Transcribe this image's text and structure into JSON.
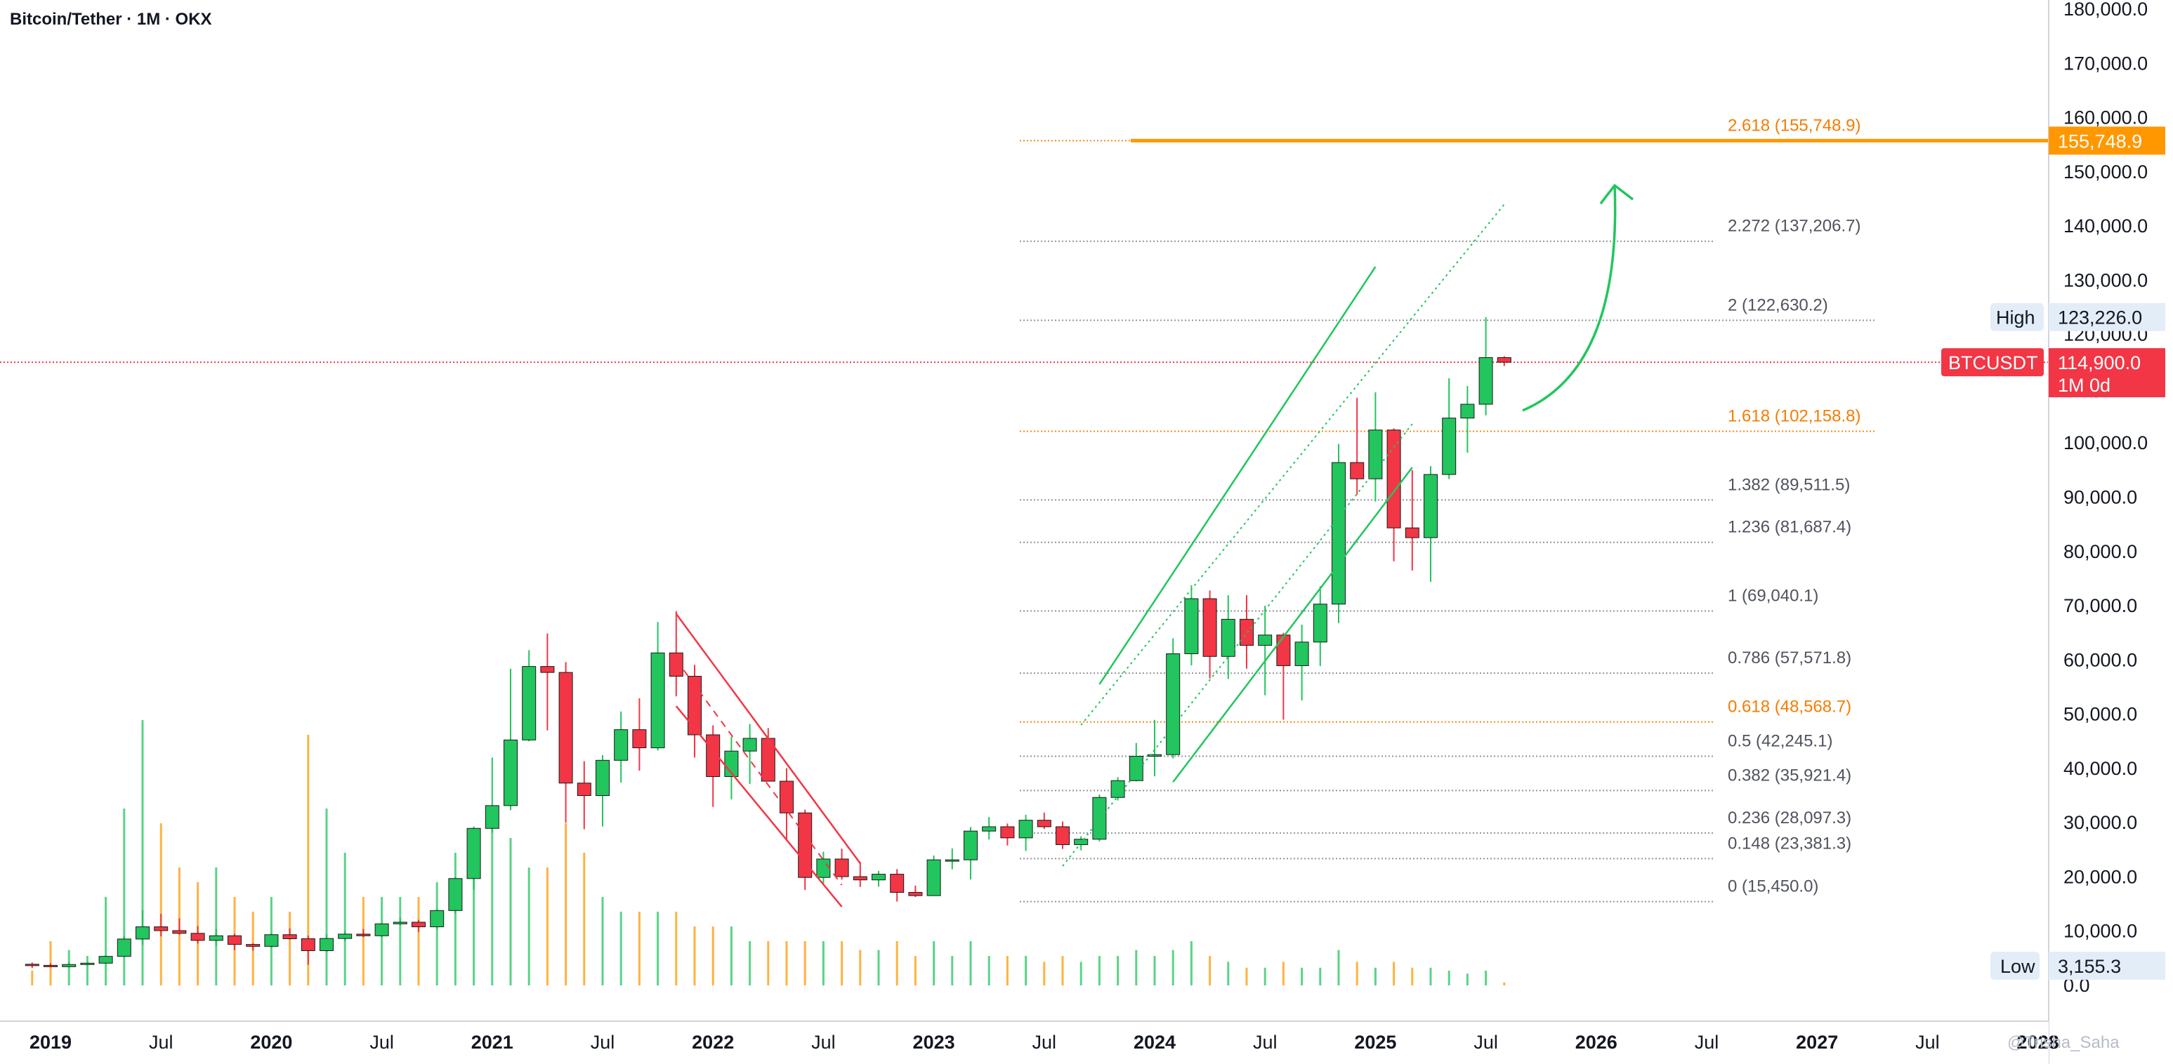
{
  "chart_data": {
    "type": "candlestick",
    "title": "Bitcoin/Tether · 1M · OKX",
    "symbol": "BTCUSDT",
    "timeframe_label": "1M 0d",
    "ylim": [
      0,
      180000
    ],
    "y_ticks": [
      "0.0",
      "10,000.0",
      "20,000.0",
      "30,000.0",
      "40,000.0",
      "50,000.0",
      "60,000.0",
      "70,000.0",
      "80,000.0",
      "90,000.0",
      "100,000.0",
      "110,000.0",
      "120,000.0",
      "130,000.0",
      "140,000.0",
      "150,000.0",
      "160,000.0",
      "170,000.0",
      "180,000.0"
    ],
    "y_tick_values": [
      0,
      10000,
      20000,
      30000,
      40000,
      50000,
      60000,
      70000,
      80000,
      90000,
      100000,
      110000,
      120000,
      130000,
      140000,
      150000,
      160000,
      170000,
      180000
    ],
    "x_labels": [
      {
        "text": "2019",
        "date": "2019-01",
        "bold": true
      },
      {
        "text": "Jul",
        "date": "2019-07",
        "bold": false
      },
      {
        "text": "2020",
        "date": "2020-01",
        "bold": true
      },
      {
        "text": "Jul",
        "date": "2020-07",
        "bold": false
      },
      {
        "text": "2021",
        "date": "2021-01",
        "bold": true
      },
      {
        "text": "Jul",
        "date": "2021-07",
        "bold": false
      },
      {
        "text": "2022",
        "date": "2022-01",
        "bold": true
      },
      {
        "text": "Jul",
        "date": "2022-07",
        "bold": false
      },
      {
        "text": "2023",
        "date": "2023-01",
        "bold": true
      },
      {
        "text": "Jul",
        "date": "2023-07",
        "bold": false
      },
      {
        "text": "2024",
        "date": "2024-01",
        "bold": true
      },
      {
        "text": "Jul",
        "date": "2024-07",
        "bold": false
      },
      {
        "text": "2025",
        "date": "2025-01",
        "bold": true
      },
      {
        "text": "Jul",
        "date": "2025-07",
        "bold": false
      },
      {
        "text": "2026",
        "date": "2026-01",
        "bold": true
      },
      {
        "text": "Jul",
        "date": "2026-07",
        "bold": false
      },
      {
        "text": "2027",
        "date": "2027-01",
        "bold": true
      },
      {
        "text": "Jul",
        "date": "2027-07",
        "bold": false
      },
      {
        "text": "2028",
        "date": "2028-01",
        "bold": true
      }
    ],
    "candles": [
      [
        "2018-12",
        3900,
        4200,
        3200,
        3700,
        0.05
      ],
      [
        "2019-01",
        3700,
        4100,
        3400,
        3450,
        0.15
      ],
      [
        "2019-02",
        3450,
        4250,
        3350,
        3850,
        0.12
      ],
      [
        "2019-03",
        3850,
        4100,
        3700,
        4100,
        0.1
      ],
      [
        "2019-04",
        4100,
        5600,
        4050,
        5350,
        0.3
      ],
      [
        "2019-05",
        5350,
        9100,
        5300,
        8550,
        0.6
      ],
      [
        "2019-06",
        8550,
        13900,
        7450,
        10800,
        0.9
      ],
      [
        "2019-07",
        10800,
        13200,
        9050,
        10100,
        0.55
      ],
      [
        "2019-08",
        10100,
        12350,
        9350,
        9600,
        0.4
      ],
      [
        "2019-09",
        9600,
        10950,
        7700,
        8300,
        0.35
      ],
      [
        "2019-10",
        8300,
        10400,
        7300,
        9150,
        0.4
      ],
      [
        "2019-11",
        9150,
        9500,
        6500,
        7550,
        0.3
      ],
      [
        "2019-12",
        7550,
        7750,
        6400,
        7200,
        0.25
      ],
      [
        "2020-01",
        7200,
        9600,
        6900,
        9350,
        0.3
      ],
      [
        "2020-02",
        9350,
        10500,
        8450,
        8600,
        0.25
      ],
      [
        "2020-03",
        8600,
        9200,
        3800,
        6400,
        0.85
      ],
      [
        "2020-04",
        6400,
        9500,
        6150,
        8650,
        0.6
      ],
      [
        "2020-05",
        8650,
        10050,
        8100,
        9450,
        0.45
      ],
      [
        "2020-06",
        9450,
        10400,
        8900,
        9150,
        0.3
      ],
      [
        "2020-07",
        9150,
        11450,
        8950,
        11350,
        0.3
      ],
      [
        "2020-08",
        11350,
        12450,
        11100,
        11650,
        0.3
      ],
      [
        "2020-09",
        11650,
        12100,
        9850,
        10800,
        0.3
      ],
      [
        "2020-10",
        10800,
        14100,
        10400,
        13800,
        0.35
      ],
      [
        "2020-11",
        13800,
        19900,
        13250,
        19700,
        0.45
      ],
      [
        "2020-12",
        19700,
        29300,
        17600,
        28950,
        0.5
      ],
      [
        "2021-01",
        28950,
        42000,
        28150,
        33150,
        0.55
      ],
      [
        "2021-02",
        33150,
        58400,
        32300,
        45250,
        0.5
      ],
      [
        "2021-03",
        45250,
        61800,
        45000,
        58800,
        0.4
      ],
      [
        "2021-04",
        58800,
        64900,
        47000,
        57700,
        0.4
      ],
      [
        "2021-05",
        57700,
        59600,
        30000,
        37300,
        0.55
      ],
      [
        "2021-06",
        37300,
        41350,
        28800,
        35000,
        0.45
      ],
      [
        "2021-07",
        35000,
        42450,
        29300,
        41500,
        0.3
      ],
      [
        "2021-08",
        41500,
        50500,
        37400,
        47150,
        0.25
      ],
      [
        "2021-09",
        47150,
        52950,
        39600,
        43800,
        0.25
      ],
      [
        "2021-10",
        43800,
        67000,
        43300,
        61300,
        0.25
      ],
      [
        "2021-11",
        61300,
        69000,
        53300,
        57000,
        0.25
      ],
      [
        "2021-12",
        57000,
        59100,
        42000,
        46200,
        0.2
      ],
      [
        "2022-01",
        46200,
        47950,
        32900,
        38500,
        0.2
      ],
      [
        "2022-02",
        38500,
        45850,
        34300,
        43200,
        0.2
      ],
      [
        "2022-03",
        43200,
        48200,
        37150,
        45550,
        0.15
      ],
      [
        "2022-04",
        45550,
        47450,
        37700,
        37650,
        0.15
      ],
      [
        "2022-05",
        37650,
        40050,
        26700,
        31800,
        0.15
      ],
      [
        "2022-06",
        31800,
        32400,
        17600,
        19900,
        0.15
      ],
      [
        "2022-07",
        19900,
        24650,
        18800,
        23300,
        0.15
      ],
      [
        "2022-08",
        23300,
        25200,
        19500,
        20050,
        0.15
      ],
      [
        "2022-09",
        20050,
        22800,
        18150,
        19450,
        0.12
      ],
      [
        "2022-10",
        19450,
        21100,
        18200,
        20500,
        0.12
      ],
      [
        "2022-11",
        20500,
        21450,
        15450,
        17150,
        0.15
      ],
      [
        "2022-12",
        17150,
        18400,
        16300,
        16550,
        0.1
      ],
      [
        "2023-01",
        16550,
        23950,
        16500,
        23150,
        0.15
      ],
      [
        "2023-02",
        23150,
        25250,
        21400,
        23150,
        0.1
      ],
      [
        "2023-03",
        23150,
        29200,
        19550,
        28450,
        0.15
      ],
      [
        "2023-04",
        28450,
        31050,
        26900,
        29250,
        0.1
      ],
      [
        "2023-05",
        29250,
        29850,
        25800,
        27200,
        0.1
      ],
      [
        "2023-06",
        27200,
        31450,
        24800,
        30450,
        0.1
      ],
      [
        "2023-07",
        30450,
        31850,
        28850,
        29250,
        0.08
      ],
      [
        "2023-08",
        29250,
        30200,
        25150,
        25950,
        0.1
      ],
      [
        "2023-09",
        25950,
        27500,
        24900,
        26950,
        0.08
      ],
      [
        "2023-10",
        26950,
        35200,
        26550,
        34650,
        0.1
      ],
      [
        "2023-11",
        34650,
        38400,
        34100,
        37750,
        0.1
      ],
      [
        "2023-12",
        37750,
        44700,
        37600,
        42250,
        0.12
      ],
      [
        "2024-01",
        42250,
        48950,
        38550,
        42550,
        0.1
      ],
      [
        "2024-02",
        42550,
        64000,
        41850,
        61150,
        0.12
      ],
      [
        "2024-03",
        61150,
        73800,
        59000,
        71300,
        0.15
      ],
      [
        "2024-04",
        71300,
        72800,
        56600,
        60650,
        0.1
      ],
      [
        "2024-05",
        60650,
        71950,
        56500,
        67500,
        0.08
      ],
      [
        "2024-06",
        67500,
        71950,
        58400,
        62700,
        0.06
      ],
      [
        "2024-07",
        62700,
        70000,
        53500,
        64600,
        0.06
      ],
      [
        "2024-08",
        64600,
        65000,
        49000,
        58950,
        0.08
      ],
      [
        "2024-09",
        58950,
        66500,
        52550,
        63300,
        0.06
      ],
      [
        "2024-10",
        63300,
        73600,
        58900,
        70300,
        0.06
      ],
      [
        "2024-11",
        70300,
        99800,
        66800,
        96400,
        0.12
      ],
      [
        "2024-12",
        96400,
        108350,
        90500,
        93400,
        0.08
      ],
      [
        "2025-01",
        93400,
        109350,
        89200,
        102400,
        0.06
      ],
      [
        "2025-02",
        102400,
        102700,
        78200,
        84350,
        0.08
      ],
      [
        "2025-03",
        84350,
        95000,
        76500,
        82550,
        0.06
      ],
      [
        "2025-04",
        82550,
        95750,
        74400,
        94200,
        0.06
      ],
      [
        "2025-05",
        94200,
        111950,
        93350,
        104600,
        0.05
      ],
      [
        "2025-06",
        104600,
        110500,
        98200,
        107150,
        0.04
      ],
      [
        "2025-07",
        107150,
        123226,
        105100,
        115750,
        0.05
      ],
      [
        "2025-08",
        115750,
        116000,
        114200,
        114900,
        0.01
      ]
    ],
    "fib_levels": [
      {
        "ratio": "0",
        "label": "0 (15,450.0)",
        "value": 15450.0,
        "color": "#131722",
        "orange": false
      },
      {
        "ratio": "0.148",
        "label": "0.148 (23,381.3)",
        "value": 23381.3,
        "color": "#131722",
        "orange": false
      },
      {
        "ratio": "0.236",
        "label": "0.236 (28,097.3)",
        "value": 28097.3,
        "color": "#131722",
        "orange": false
      },
      {
        "ratio": "0.382",
        "label": "0.382 (35,921.4)",
        "value": 35921.4,
        "color": "#131722",
        "orange": false
      },
      {
        "ratio": "0.5",
        "label": "0.5 (42,245.1)",
        "value": 42245.1,
        "color": "#131722",
        "orange": false
      },
      {
        "ratio": "0.618",
        "label": "0.618 (48,568.7)",
        "value": 48568.7,
        "color": "#f57c00",
        "orange": true
      },
      {
        "ratio": "0.786",
        "label": "0.786 (57,571.8)",
        "value": 57571.8,
        "color": "#131722",
        "orange": false
      },
      {
        "ratio": "1",
        "label": "1 (69,040.1)",
        "value": 69040.1,
        "color": "#131722",
        "orange": false
      },
      {
        "ratio": "1.236",
        "label": "1.236 (81,687.4)",
        "value": 81687.4,
        "color": "#131722",
        "orange": false
      },
      {
        "ratio": "1.382",
        "label": "1.382 (89,511.5)",
        "value": 89511.5,
        "color": "#131722",
        "orange": false
      },
      {
        "ratio": "1.618",
        "label": "1.618 (102,158.8)",
        "value": 102158.8,
        "color": "#f57c00",
        "orange": true
      },
      {
        "ratio": "2",
        "label": "2 (122,630.2)",
        "value": 122630.2,
        "color": "#131722",
        "orange": false
      },
      {
        "ratio": "2.272",
        "label": "2.272 (137,206.7)",
        "value": 137206.7,
        "color": "#131722",
        "orange": false
      },
      {
        "ratio": "2.618",
        "label": "2.618 (155,748.9)",
        "value": 155748.9,
        "color": "#f57c00",
        "orange": true
      }
    ],
    "target": {
      "value": 155748.9,
      "label": "155,748.9",
      "color": "#ff9800"
    },
    "current_price": {
      "value": 114900.0,
      "label": "114,900.0",
      "color": "#f23645"
    },
    "high": {
      "label": "High",
      "value": 123226.0,
      "value_label": "123,226.0"
    },
    "low": {
      "label": "Low",
      "value": 3155.3,
      "value_label": "3,155.3"
    },
    "descending_channel": {
      "color": "#f23645",
      "upper": [
        [
          "2021-11",
          68500
        ],
        [
          "2022-09",
          22500
        ]
      ],
      "middle": [
        [
          "2021-11",
          60000
        ],
        [
          "2022-08",
          18500
        ]
      ],
      "lower": [
        [
          "2021-11",
          51500
        ],
        [
          "2022-08",
          14500
        ]
      ]
    },
    "ascending_channel": {
      "color": "#22c55e",
      "upper": [
        [
          "2023-10",
          55500
        ],
        [
          "2025-01",
          132500
        ]
      ],
      "inner_upper": [
        [
          "2023-09",
          48000
        ],
        [
          "2025-08",
          144000
        ]
      ],
      "inner_lower": [
        [
          "2023-08",
          22000
        ],
        [
          "2025-03",
          103500
        ]
      ],
      "lower": [
        [
          "2024-02",
          37500
        ],
        [
          "2025-03",
          95500
        ]
      ]
    },
    "projection_arrow": {
      "color": "#22c55e",
      "from": [
        "2025-09",
        106000
      ],
      "to": [
        "2026-02",
        147500
      ]
    },
    "colors": {
      "up": "#22c55e",
      "down": "#f23645",
      "vol_up": "#22c55e",
      "vol_down": "#ff9800",
      "axis_text": "#131722"
    },
    "watermark": "@Trisha_Saha"
  }
}
